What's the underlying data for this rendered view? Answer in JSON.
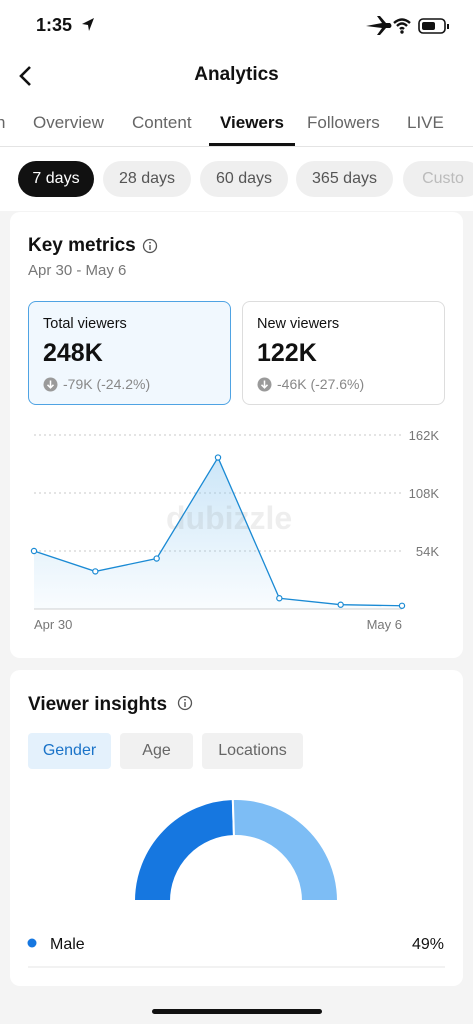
{
  "status_bar": {
    "time": "1:35"
  },
  "header": {
    "title": "Analytics"
  },
  "tabs": {
    "items": [
      "n",
      "Overview",
      "Content",
      "Viewers",
      "Followers",
      "LIVE"
    ],
    "active": 3
  },
  "filters": {
    "items": [
      "7 days",
      "28 days",
      "60 days",
      "365 days",
      "Custo"
    ],
    "active": 0
  },
  "key_metrics": {
    "title": "Key metrics",
    "date_range": "Apr 30 - May 6",
    "cards": [
      {
        "label": "Total viewers",
        "value": "248K",
        "change": "-79K (-24.2%)"
      },
      {
        "label": "New viewers",
        "value": "122K",
        "change": "-46K (-27.6%)"
      }
    ]
  },
  "watermark": "dubizzle",
  "viewer_insights": {
    "title": "Viewer insights",
    "tabs": [
      "Gender",
      "Age",
      "Locations"
    ],
    "active": 0
  },
  "chart_data": [
    {
      "type": "line",
      "categories": [
        "Apr 30",
        null,
        null,
        null,
        null,
        null,
        "May 6"
      ],
      "series": [
        {
          "color": "#1a8ad4",
          "values": [
            54000,
            35000,
            47000,
            141000,
            10000,
            4000,
            3000
          ]
        }
      ],
      "ylim": [
        0,
        162000
      ],
      "yticks": [
        {
          "value": 54000,
          "label": "54K"
        },
        {
          "value": 108000,
          "label": "108K"
        },
        {
          "value": 162000,
          "label": "162K"
        }
      ],
      "grid": true
    },
    {
      "type": "pie",
      "half": true,
      "categories": [
        "Male",
        null
      ],
      "values": [
        49,
        51
      ],
      "value_labels": [
        "49%",
        null
      ],
      "colors": [
        "#1677e0",
        "#7dbdf5"
      ]
    }
  ]
}
